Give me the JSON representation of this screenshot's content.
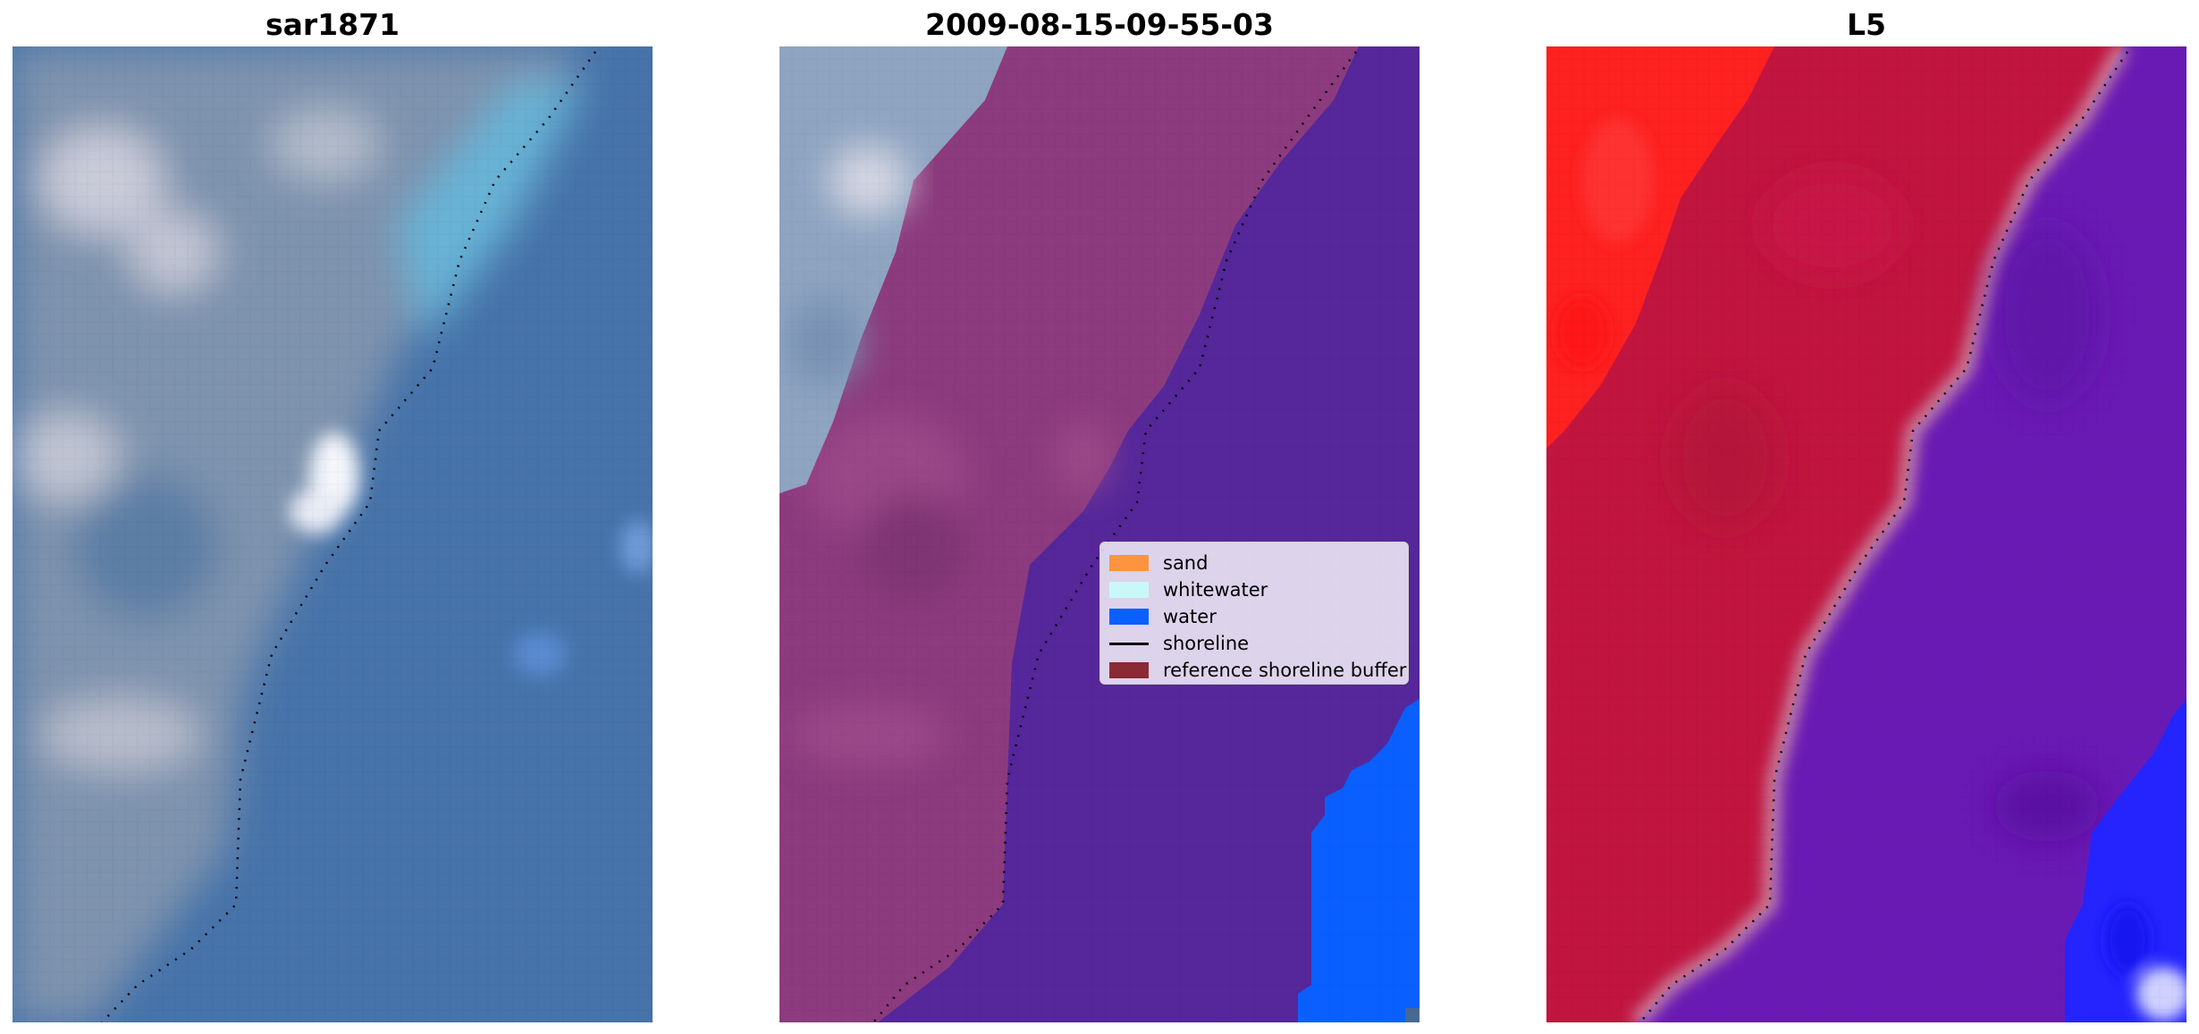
{
  "panels": [
    {
      "title": "sar1871"
    },
    {
      "title": "2009-08-15-09-55-03"
    },
    {
      "title": "L5"
    }
  ],
  "legend": {
    "items": [
      {
        "label": "sand",
        "color": "#ff9440",
        "kind": "patch"
      },
      {
        "label": "whitewater",
        "color": "#c8f8f8",
        "kind": "patch"
      },
      {
        "label": "water",
        "color": "#0a5fff",
        "kind": "patch"
      },
      {
        "label": "shoreline",
        "color": "#000000",
        "kind": "line"
      },
      {
        "label": "reference shoreline buffer",
        "color": "#8a2a34",
        "kind": "patch"
      }
    ]
  },
  "colors": {
    "water_rgb": "#4a79ad",
    "water_deep": "#3d6aa4",
    "surf": "#66b3d8",
    "foam": "#e6e8f2",
    "land_rgb": "#7f93ad",
    "class_water": "#55279a",
    "class_buffer": "#8c3b7e",
    "class_ocean": "#0a5fff",
    "index_land": "#c0143e",
    "index_bright": "#ff2020",
    "index_water": "#6418b8",
    "index_blue": "#2020ff"
  }
}
